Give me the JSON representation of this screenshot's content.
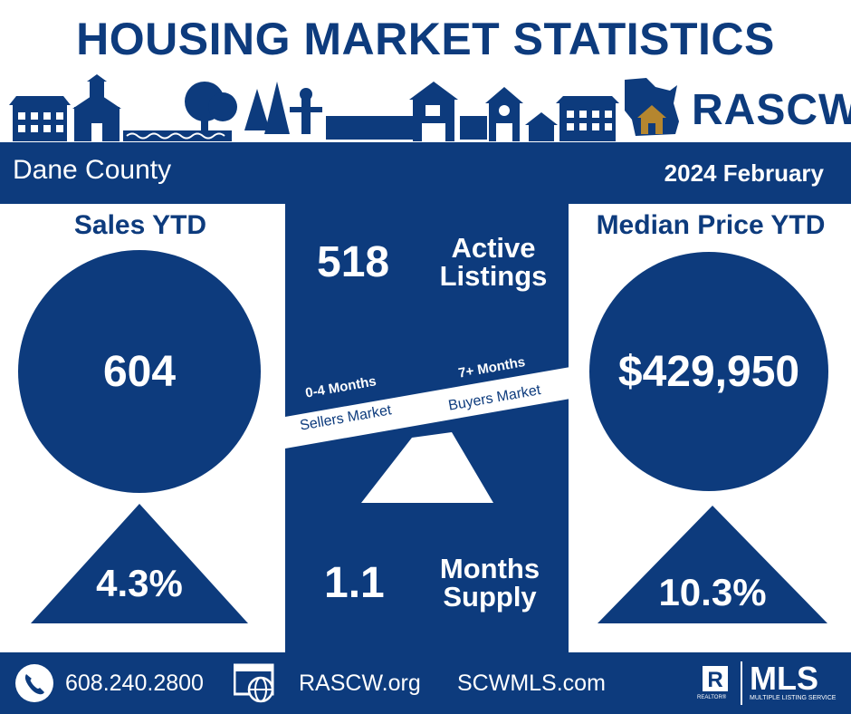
{
  "title": "HOUSING MARKET STATISTICS",
  "brand": {
    "name": "RASCW"
  },
  "location": "Dane County",
  "period": "2024 February",
  "sales": {
    "heading": "Sales YTD",
    "value": "604",
    "change": "4.3%"
  },
  "median_price": {
    "heading": "Median Price YTD",
    "value": "$429,950",
    "change": "10.3%"
  },
  "active_listings": {
    "value": "518",
    "label_line1": "Active",
    "label_line2": "Listings"
  },
  "months_supply": {
    "value": "1.1",
    "label_line1": "Months",
    "label_line2": "Supply"
  },
  "market_scale": {
    "sellers_range": "0-4 Months",
    "sellers_label": "Sellers Market",
    "buyers_range": "7+ Months",
    "buyers_label": "Buyers Market"
  },
  "footer": {
    "phone": "608.240.2800",
    "website1": "RASCW.org",
    "website2": "SCWMLS.com",
    "realtor_mark": "REALTOR®",
    "mls_title": "MLS",
    "mls_subtitle": "MULTIPLE LISTING SERVICE"
  },
  "colors": {
    "navy": "#0d3b7d",
    "white": "#ffffff",
    "logo_brown": "#b5862f"
  },
  "icons": [
    "phone-icon",
    "web-icon",
    "wisconsin-house-icon",
    "realtor-r-icon"
  ]
}
